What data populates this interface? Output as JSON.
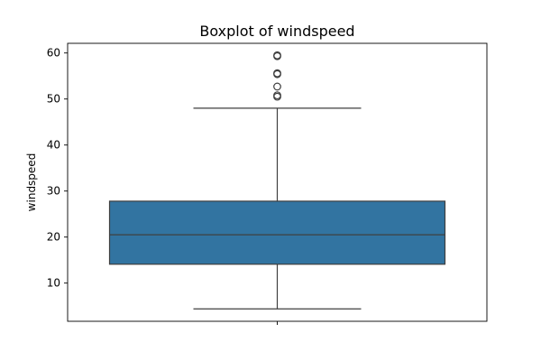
{
  "chart_data": {
    "type": "boxplot",
    "title": "Boxplot of windspeed",
    "xlabel": "",
    "ylabel": "windspeed",
    "ylim": [
      1.7,
      62.1
    ],
    "yticks": [
      10,
      20,
      30,
      40,
      50,
      60
    ],
    "grid": false,
    "legend": "none",
    "colors": {
      "box": "#3274a1",
      "line": "#3f3f3f"
    },
    "box": {
      "min": 4.4,
      "q1": 14.1,
      "median": 20.5,
      "q3": 27.8,
      "max": 48.0,
      "outliers": [
        50.5,
        50.8,
        52.7,
        55.4,
        55.6,
        59.3,
        59.5
      ]
    }
  }
}
